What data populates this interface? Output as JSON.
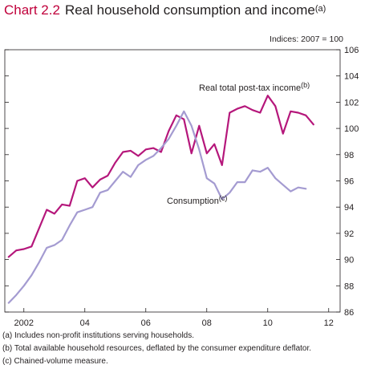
{
  "header": {
    "chart_number": "Chart 2.2",
    "title": "Real household consumption and income",
    "title_note": "(a)"
  },
  "chart_data": {
    "type": "line",
    "y_unit_label": "Indices: 2007 = 100",
    "ylim": [
      86,
      106
    ],
    "yticks": [
      86,
      88,
      90,
      92,
      94,
      96,
      98,
      100,
      102,
      104,
      106
    ],
    "xlim": [
      2001.875,
      2012.875
    ],
    "xticks": [
      {
        "value": 2002.5,
        "label": "2002"
      },
      {
        "value": 2004.5,
        "label": "04"
      },
      {
        "value": 2006.5,
        "label": "06"
      },
      {
        "value": 2008.5,
        "label": "08"
      },
      {
        "value": 2010.5,
        "label": "10"
      },
      {
        "value": 2012.5,
        "label": "12"
      }
    ],
    "grid": false,
    "series": [
      {
        "name": "Real total post-tax income",
        "name_note": "(b)",
        "color": "#b5177b",
        "x": [
          2002.0,
          2002.25,
          2002.5,
          2002.75,
          2003.0,
          2003.25,
          2003.5,
          2003.75,
          2004.0,
          2004.25,
          2004.5,
          2004.75,
          2005.0,
          2005.25,
          2005.5,
          2005.75,
          2006.0,
          2006.25,
          2006.5,
          2006.75,
          2007.0,
          2007.25,
          2007.5,
          2007.75,
          2008.0,
          2008.25,
          2008.5,
          2008.75,
          2009.0,
          2009.25,
          2009.5,
          2009.75,
          2010.0,
          2010.25,
          2010.5,
          2010.75,
          2011.0,
          2011.25,
          2011.5,
          2011.75,
          2012.0,
          2012.25,
          2012.5
        ],
        "values": [
          90.2,
          90.7,
          90.8,
          91.0,
          92.4,
          93.8,
          93.5,
          94.2,
          94.1,
          96.0,
          96.2,
          95.5,
          96.1,
          96.4,
          97.4,
          98.2,
          98.3,
          97.9,
          98.4,
          98.5,
          98.2,
          99.8,
          101.0,
          100.7,
          98.1,
          100.2,
          98.1,
          98.8,
          97.2,
          101.2,
          101.5,
          101.7,
          101.4,
          101.2,
          102.5,
          101.7,
          99.6,
          101.3,
          101.2,
          101.0,
          100.3,
          null,
          null
        ],
        "label_text": "Real total post-tax income",
        "label_note": "(b)"
      },
      {
        "name": "Consumption",
        "name_note": "(c)",
        "color": "#a49bd1",
        "x": [
          2002.0,
          2002.25,
          2002.5,
          2002.75,
          2003.0,
          2003.25,
          2003.5,
          2003.75,
          2004.0,
          2004.25,
          2004.5,
          2004.75,
          2005.0,
          2005.25,
          2005.5,
          2005.75,
          2006.0,
          2006.25,
          2006.5,
          2006.75,
          2007.0,
          2007.25,
          2007.5,
          2007.75,
          2008.0,
          2008.25,
          2008.5,
          2008.75,
          2009.0,
          2009.25,
          2009.5,
          2009.75,
          2010.0,
          2010.25,
          2010.5,
          2010.75,
          2011.0,
          2011.25,
          2011.5,
          2011.75,
          2012.0,
          2012.25,
          2012.5
        ],
        "values": [
          86.7,
          87.3,
          88.0,
          88.8,
          89.8,
          90.9,
          91.1,
          91.5,
          92.6,
          93.6,
          93.8,
          94.0,
          95.1,
          95.3,
          96.0,
          96.7,
          96.3,
          97.2,
          97.6,
          97.9,
          98.5,
          99.2,
          100.2,
          101.3,
          100.2,
          98.4,
          96.2,
          95.8,
          94.6,
          95.1,
          95.9,
          95.9,
          96.8,
          96.7,
          97.0,
          96.2,
          95.7,
          95.2,
          95.5,
          95.4,
          null,
          null,
          null
        ],
        "label_text": "Consumption",
        "label_note": "(c)"
      }
    ]
  },
  "footnotes": [
    "(a)  Includes non-profit institutions serving households.",
    "(b)  Total available household resources, deflated by the consumer expenditure deflator.",
    "(c)  Chained-volume measure."
  ]
}
